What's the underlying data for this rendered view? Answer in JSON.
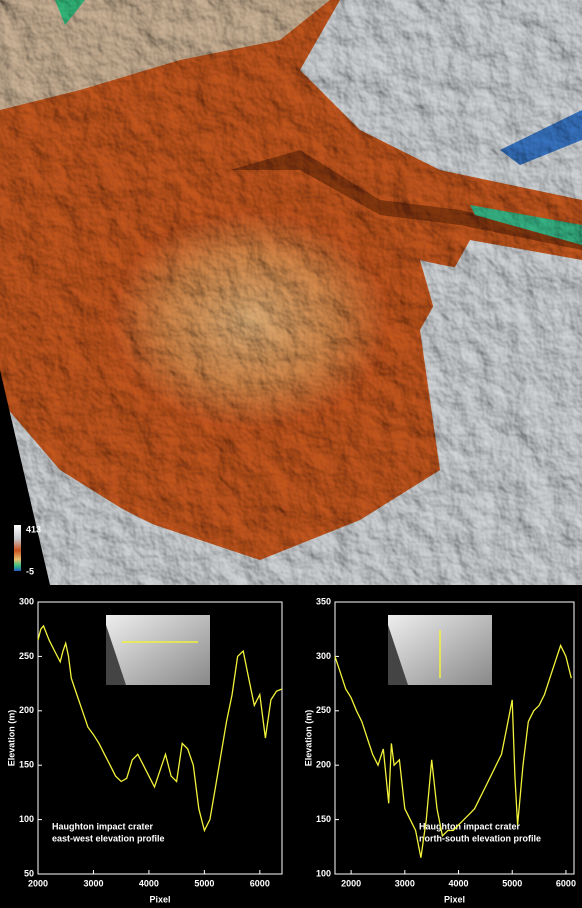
{
  "map": {
    "colorbar": {
      "max": 413,
      "min": -5
    }
  },
  "chart_data": [
    {
      "type": "line",
      "x_label": "Pixel",
      "y_label": "Elevation (m)",
      "annotation": [
        "Haughton impact crater",
        "east-west elevation profile"
      ],
      "xlim": [
        2000,
        6400
      ],
      "xticks": [
        2000,
        3000,
        4000,
        5000,
        6000
      ],
      "ylim": [
        50,
        300
      ],
      "yticks": [
        50,
        100,
        150,
        200,
        250,
        300
      ],
      "series": [
        {
          "color": "#f2f23a",
          "x": [
            2000,
            2050,
            2100,
            2200,
            2300,
            2400,
            2450,
            2500,
            2550,
            2600,
            2700,
            2800,
            2900,
            3000,
            3100,
            3200,
            3300,
            3400,
            3500,
            3600,
            3700,
            3800,
            3900,
            4000,
            4100,
            4200,
            4300,
            4400,
            4500,
            4600,
            4700,
            4800,
            4900,
            5000,
            5100,
            5200,
            5300,
            5400,
            5500,
            5600,
            5700,
            5800,
            5900,
            6000,
            6100,
            6200,
            6300,
            6400
          ],
          "values": [
            265,
            275,
            278,
            265,
            255,
            245,
            255,
            262,
            250,
            230,
            215,
            200,
            185,
            178,
            170,
            160,
            150,
            140,
            135,
            138,
            155,
            160,
            150,
            140,
            130,
            145,
            160,
            140,
            135,
            170,
            165,
            150,
            110,
            90,
            100,
            130,
            160,
            190,
            215,
            250,
            255,
            230,
            205,
            215,
            175,
            210,
            218,
            220
          ]
        }
      ]
    },
    {
      "type": "line",
      "x_label": "Pixel",
      "y_label": "Elevation (m)",
      "annotation": [
        "Haughton impact crater",
        "north-south elevation profile"
      ],
      "xlim": [
        1700,
        6150
      ],
      "xticks": [
        2000,
        3000,
        4000,
        5000,
        6000
      ],
      "ylim": [
        100,
        350
      ],
      "yticks": [
        100,
        150,
        200,
        250,
        300,
        350
      ],
      "series": [
        {
          "color": "#f2f23a",
          "x": [
            1700,
            1800,
            1900,
            2000,
            2100,
            2200,
            2300,
            2400,
            2500,
            2600,
            2700,
            2750,
            2800,
            2900,
            3000,
            3100,
            3200,
            3300,
            3400,
            3500,
            3600,
            3700,
            3800,
            3900,
            4000,
            4100,
            4200,
            4300,
            4400,
            4500,
            4600,
            4700,
            4800,
            4900,
            5000,
            5050,
            5100,
            5200,
            5300,
            5400,
            5500,
            5600,
            5700,
            5800,
            5900,
            6000,
            6100
          ],
          "values": [
            300,
            285,
            270,
            262,
            250,
            240,
            225,
            210,
            200,
            215,
            165,
            220,
            200,
            205,
            160,
            150,
            140,
            115,
            150,
            205,
            160,
            135,
            140,
            140,
            145,
            150,
            155,
            160,
            170,
            180,
            190,
            200,
            210,
            235,
            260,
            190,
            145,
            200,
            240,
            250,
            255,
            265,
            280,
            295,
            310,
            300,
            280
          ]
        }
      ]
    }
  ]
}
